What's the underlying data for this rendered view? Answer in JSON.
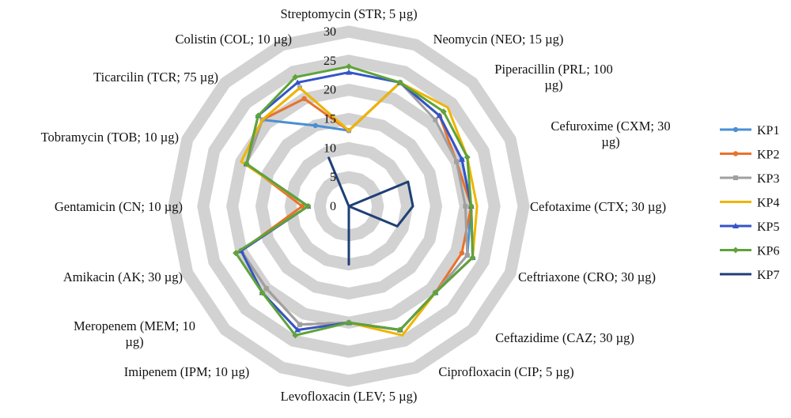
{
  "chart_data": {
    "type": "radar",
    "categories": [
      [
        "Streptomycin (STR; 5 µg)"
      ],
      [
        "Neomycin (NEO; 15 µg)"
      ],
      [
        "Piperacillin (PRL; 100",
        "µg)"
      ],
      [
        "Cefuroxime (CXM; 30",
        "µg)"
      ],
      [
        "Cefotaxime (CTX; 30 µg)"
      ],
      [
        "Ceftriaxone (CRO; 30 µg)"
      ],
      [
        "Ceftazidime (CAZ; 30 µg)"
      ],
      [
        "Ciprofloxacin (CIP; 5 µg)"
      ],
      [
        "Levofloxacin (LEV; 5 µg)"
      ],
      [
        "Imipenem (IPM; 10 µg)"
      ],
      [
        "Meropenem (MEM; 10",
        "µg)"
      ],
      [
        "Amikacin (AK; 30 µg)"
      ],
      [
        "Gentamicin (CN; 10 µg)"
      ],
      [
        "Tobramycin (TOB; 10 µg)"
      ],
      [
        "Ticarcilin (TCR; 75 µg)"
      ],
      [
        "Colistin (COL; 10 µg)"
      ]
    ],
    "r_range": [
      0,
      30
    ],
    "r_ticks": [
      "0",
      "5",
      "10",
      "15",
      "20",
      "25",
      "30"
    ],
    "grid": true,
    "legend_position": "right",
    "series": [
      {
        "name": "KP1",
        "color": "#4a8fd4",
        "marker": "circle",
        "values": [
          13,
          23,
          22,
          21,
          21,
          22,
          21,
          23,
          20,
          22,
          20,
          20,
          7,
          19,
          21,
          15
        ]
      },
      {
        "name": "KP2",
        "color": "#e8722c",
        "marker": "circle",
        "values": [
          13,
          23,
          22,
          20,
          21,
          21,
          21,
          23,
          20,
          22,
          20,
          20,
          8,
          19,
          21,
          20
        ]
      },
      {
        "name": "KP3",
        "color": "#a0a0a0",
        "marker": "square",
        "values": [
          13,
          23,
          21,
          20,
          20,
          22,
          21,
          23,
          20,
          22,
          20,
          20,
          7,
          19,
          21,
          22
        ]
      },
      {
        "name": "KP4",
        "color": "#f0b400",
        "marker": "none",
        "values": [
          13,
          23,
          24,
          22,
          22,
          23,
          21,
          24,
          20,
          23,
          21,
          20,
          7,
          20,
          21,
          22
        ]
      },
      {
        "name": "KP5",
        "color": "#3454c8",
        "marker": "triangle",
        "values": [
          23,
          23,
          22,
          21,
          21,
          23,
          21,
          23,
          20,
          23,
          21,
          20,
          7,
          19,
          22,
          23
        ]
      },
      {
        "name": "KP6",
        "color": "#5fa33a",
        "marker": "diamond",
        "values": [
          24,
          23,
          23,
          22,
          21,
          23,
          21,
          23,
          20,
          24,
          21,
          21,
          7,
          19,
          22,
          24
        ]
      },
      {
        "name": "KP7",
        "color": "#1f3f75",
        "marker": "none",
        "values": [
          0,
          0,
          0,
          11,
          11,
          9,
          0,
          0,
          10,
          0,
          0,
          0,
          0,
          0,
          0,
          9
        ]
      }
    ]
  }
}
